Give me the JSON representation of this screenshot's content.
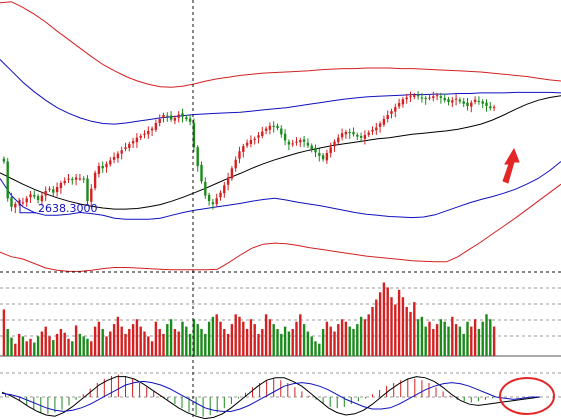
{
  "chart_data": [
    {
      "type": "candlestick",
      "panel": "price",
      "price_label": "2638.3000",
      "price_label_value": 2638.3,
      "colors": {
        "up": "#d42020",
        "down": "#1a8a1a",
        "ma": "#000000",
        "inner_band": "#1010c0",
        "outer_band": "#d42020",
        "annotation": "#e32626"
      },
      "candle_count": 130,
      "candles_close": [
        2720,
        2655,
        2640,
        2645,
        2650,
        2648,
        2655,
        2662,
        2658,
        2652,
        2660,
        2668,
        2672,
        2665,
        2675,
        2682,
        2686,
        2690,
        2687,
        2692,
        2690,
        2688,
        2650,
        2672,
        2700,
        2712,
        2708,
        2716,
        2722,
        2728,
        2734,
        2740,
        2745,
        2751,
        2756,
        2762,
        2765,
        2769,
        2774,
        2778,
        2788,
        2795,
        2802,
        2800,
        2794,
        2797,
        2803,
        2799,
        2795,
        2790,
        2745,
        2712,
        2685,
        2660,
        2650,
        2645,
        2655,
        2665,
        2678,
        2692,
        2708,
        2723,
        2738,
        2747,
        2753,
        2758,
        2760,
        2766,
        2773,
        2778,
        2783,
        2781,
        2779,
        2768,
        2757,
        2750,
        2752,
        2755,
        2758,
        2755,
        2748,
        2742,
        2736,
        2730,
        2724,
        2735,
        2745,
        2755,
        2762,
        2770,
        2772,
        2770,
        2768,
        2764,
        2762,
        2767,
        2771,
        2776,
        2780,
        2787,
        2795,
        2802,
        2809,
        2816,
        2823,
        2830,
        2833,
        2835,
        2837,
        2835,
        2832,
        2830,
        2833,
        2835,
        2837,
        2832,
        2828,
        2825,
        2828,
        2831,
        2826,
        2822,
        2818,
        2824,
        2829,
        2826,
        2822,
        2818,
        2814,
        2816
      ],
      "middle_ma": [
        2700,
        2690,
        2680,
        2671,
        2663,
        2656,
        2650,
        2645,
        2641,
        2638,
        2636,
        2636,
        2637,
        2640,
        2644,
        2650,
        2657,
        2665,
        2673,
        2682,
        2691,
        2699,
        2708,
        2716,
        2723,
        2729,
        2735,
        2740,
        2744,
        2748,
        2751,
        2754,
        2757,
        2760,
        2762,
        2765,
        2768,
        2770,
        2772,
        2774,
        2777,
        2781,
        2786,
        2793,
        2802,
        2812,
        2821,
        2828,
        2833,
        2836
      ],
      "inner_upper_band": [
        2900,
        2880,
        2860,
        2843,
        2828,
        2815,
        2805,
        2797,
        2791,
        2787,
        2786,
        2788,
        2791,
        2794,
        2797,
        2799,
        2801,
        2803,
        2804,
        2805,
        2806,
        2807,
        2809,
        2811,
        2813,
        2815,
        2818,
        2821,
        2824,
        2827,
        2830,
        2832,
        2834,
        2835,
        2836,
        2837,
        2838,
        2838,
        2839,
        2839,
        2840,
        2840,
        2841,
        2841,
        2841,
        2842,
        2842,
        2842,
        2842,
        2841
      ],
      "inner_lower_band": [
        2690,
        2660,
        2640,
        2630,
        2625,
        2625,
        2627,
        2630,
        2628,
        2625,
        2620,
        2618,
        2618,
        2618,
        2620,
        2625,
        2630,
        2634,
        2637,
        2640,
        2643,
        2646,
        2650,
        2653,
        2655,
        2652,
        2648,
        2645,
        2642,
        2638,
        2634,
        2630,
        2627,
        2625,
        2623,
        2622,
        2621,
        2622,
        2626,
        2633,
        2640,
        2647,
        2653,
        2658,
        2664,
        2671,
        2680,
        2690,
        2704,
        2720
      ],
      "outer_upper_band": [
        3000,
        3002,
        2992,
        2980,
        2966,
        2950,
        2935,
        2920,
        2905,
        2891,
        2880,
        2870,
        2862,
        2856,
        2852,
        2851,
        2853,
        2857,
        2862,
        2866,
        2869,
        2872,
        2874,
        2876,
        2877,
        2878,
        2879,
        2880,
        2882,
        2883,
        2884,
        2884,
        2885,
        2885,
        2885,
        2884,
        2884,
        2883,
        2882,
        2881,
        2880,
        2879,
        2878,
        2876,
        2874,
        2872,
        2870,
        2867,
        2864,
        2862
      ],
      "outer_lower_band": [
        2560,
        2552,
        2548,
        2540,
        2532,
        2528,
        2526,
        2526,
        2528,
        2531,
        2533,
        2533,
        2532,
        2531,
        2530,
        2529,
        2529,
        2529,
        2529,
        2530,
        2542,
        2555,
        2567,
        2574,
        2576,
        2575,
        2572,
        2568,
        2565,
        2562,
        2559,
        2556,
        2553,
        2551,
        2549,
        2547,
        2545,
        2544,
        2543,
        2543,
        2552,
        2565,
        2578,
        2592,
        2606,
        2620,
        2635,
        2650,
        2665,
        2680
      ]
    },
    {
      "type": "bar",
      "panel": "volume",
      "series": [
        {
          "values": [
            38,
            22,
            15,
            10,
            18,
            16,
            12,
            14,
            11,
            16,
            20,
            24,
            16,
            13,
            18,
            22,
            19,
            14,
            12,
            25,
            18,
            16,
            14,
            12,
            24,
            28,
            22,
            16,
            20,
            26,
            32,
            24,
            18,
            22,
            26,
            30,
            24,
            20,
            16,
            12,
            28,
            22,
            18,
            26,
            30,
            22,
            20,
            28,
            24,
            18,
            30,
            26,
            22,
            18,
            28,
            32,
            34,
            28,
            22,
            18,
            26,
            34,
            32,
            28,
            22,
            30,
            26,
            18,
            22,
            34,
            30,
            26,
            22,
            18,
            24,
            20,
            22,
            28,
            34,
            26,
            20,
            16,
            12,
            10,
            22,
            28,
            24,
            20,
            26,
            30,
            28,
            24,
            22,
            26,
            32,
            30,
            34,
            40,
            46,
            52,
            60,
            56,
            48,
            42,
            54,
            48,
            40,
            36,
            44,
            30,
            32,
            24,
            28,
            22,
            26,
            30,
            28,
            24,
            32,
            26,
            24,
            18,
            28,
            24,
            30,
            22,
            28,
            34,
            30,
            24
          ]
        }
      ]
    },
    {
      "type": "bar",
      "panel": "macd",
      "series": [
        {
          "values": [
            0.2,
            0.0,
            -0.3,
            -0.6,
            -0.9,
            -1.1,
            -1.2,
            -1.1,
            -0.9,
            -0.6,
            -0.2,
            0.2,
            0.6,
            1.0,
            1.3,
            1.5,
            1.6,
            1.5,
            1.3,
            1.0,
            0.7,
            0.4,
            0.1,
            -0.2,
            -0.5,
            -0.8,
            -1.1,
            -1.3,
            -1.4,
            -1.3,
            -1.1,
            -0.8,
            -0.5,
            -0.1,
            0.3,
            0.7,
            1.0,
            1.2,
            1.3,
            1.2,
            1.0,
            0.7,
            0.4,
            0.1,
            -0.2,
            -0.5,
            -0.7,
            -0.8,
            -0.7,
            -0.5,
            -0.3,
            -0.1,
            0.2,
            0.5,
            0.8,
            1.0,
            1.2,
            1.3,
            1.3,
            1.2,
            1.0,
            0.7,
            0.4,
            0.1,
            -0.2,
            -0.3,
            -0.4,
            -0.3,
            -0.2,
            -0.1
          ]
        },
        {
          "values": [
            0.4,
            0.1,
            -0.3,
            -0.8,
            -1.2,
            -1.5,
            -1.6,
            -1.3,
            -0.8,
            -0.2,
            0.4,
            1.0,
            1.4,
            1.7,
            1.7,
            1.5,
            1.1,
            0.6,
            0.1,
            -0.4,
            -0.9,
            -1.3,
            -1.6,
            -1.8,
            -1.7,
            -1.4,
            -0.9,
            -0.3,
            0.3,
            0.9,
            1.4,
            1.6,
            1.6,
            1.3,
            0.9,
            0.3,
            -0.3,
            -0.9,
            -1.3,
            -1.5,
            -1.4,
            -1.1,
            -0.6,
            0.0,
            0.6,
            1.1,
            1.5,
            1.7,
            1.6,
            1.3,
            0.8,
            0.2,
            -0.3,
            -0.6,
            -0.7,
            -0.6,
            -0.5,
            -0.4,
            -0.3,
            -0.2,
            -0.1,
            0.0
          ]
        },
        {
          "values": [
            0.3,
            0.2,
            0.0,
            -0.3,
            -0.6,
            -0.9,
            -1.1,
            -1.2,
            -1.1,
            -0.9,
            -0.6,
            -0.2,
            0.2,
            0.6,
            1.0,
            1.2,
            1.3,
            1.2,
            1.0,
            0.7,
            0.3,
            -0.1,
            -0.5,
            -0.9,
            -1.1,
            -1.2,
            -1.2,
            -1.0,
            -0.7,
            -0.3,
            0.1,
            0.5,
            0.9,
            1.1,
            1.2,
            1.1,
            0.9,
            0.6,
            0.2,
            -0.2,
            -0.5,
            -0.8,
            -1.0,
            -1.0,
            -0.9,
            -0.6,
            -0.2,
            0.2,
            0.6,
            0.9,
            1.1,
            1.2,
            1.1,
            0.9,
            0.6,
            0.3,
            0.0,
            -0.1,
            -0.2,
            -0.1,
            0.0,
            0.0
          ]
        }
      ]
    }
  ]
}
